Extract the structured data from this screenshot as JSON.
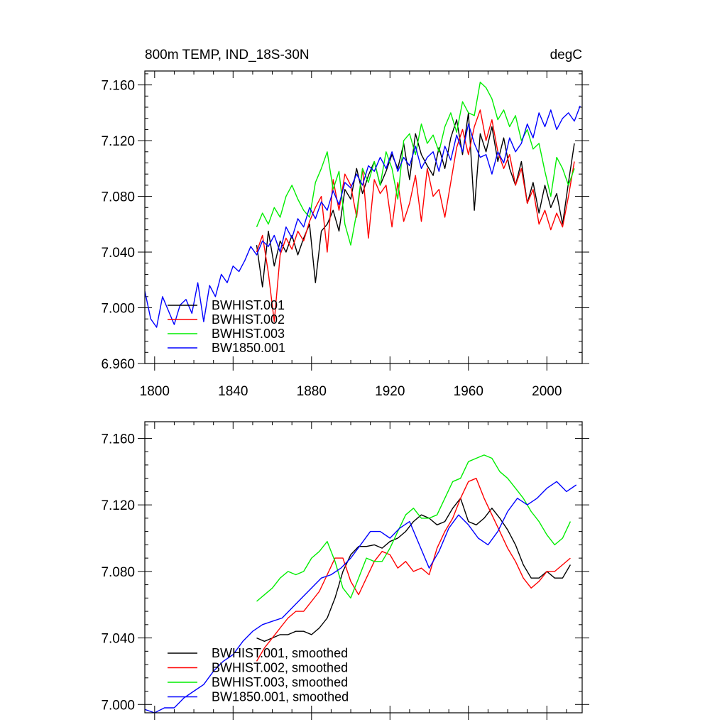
{
  "chart_data": [
    {
      "type": "line",
      "title": "800m TEMP, IND_18S-30N",
      "units": "degC",
      "xlim": [
        1795,
        2018
      ],
      "ylim": [
        6.96,
        7.17
      ],
      "xticks": [
        1800,
        1840,
        1880,
        1920,
        1960,
        2000
      ],
      "yticks": [
        6.96,
        7.0,
        7.04,
        7.08,
        7.12,
        7.16
      ],
      "yticklabels": [
        "6.960",
        "7.000",
        "7.040",
        "7.080",
        "7.120",
        "7.160"
      ],
      "legend_position": "bottom-left",
      "series": [
        {
          "name": "BWHIST.001",
          "color": "#000000",
          "x": [
            1852,
            1855,
            1858,
            1861,
            1864,
            1867,
            1870,
            1873,
            1876,
            1879,
            1882,
            1885,
            1888,
            1891,
            1894,
            1897,
            1900,
            1903,
            1906,
            1909,
            1912,
            1915,
            1918,
            1921,
            1924,
            1927,
            1930,
            1933,
            1936,
            1939,
            1942,
            1945,
            1948,
            1951,
            1954,
            1957,
            1960,
            1963,
            1966,
            1969,
            1972,
            1975,
            1978,
            1981,
            1984,
            1987,
            1990,
            1993,
            1996,
            1999,
            2002,
            2005,
            2008,
            2011,
            2014
          ],
          "values": [
            7.045,
            7.015,
            7.055,
            7.03,
            7.048,
            7.04,
            7.052,
            7.038,
            7.05,
            7.06,
            7.018,
            7.055,
            7.06,
            7.07,
            7.055,
            7.085,
            7.078,
            7.1,
            7.082,
            7.095,
            7.105,
            7.088,
            7.098,
            7.11,
            7.1,
            7.118,
            7.092,
            7.125,
            7.11,
            7.102,
            7.095,
            7.115,
            7.1,
            7.122,
            7.135,
            7.11,
            7.14,
            7.07,
            7.125,
            7.112,
            7.13,
            7.105,
            7.122,
            7.1,
            7.088,
            7.105,
            7.075,
            7.09,
            7.068,
            7.088,
            7.072,
            7.082,
            7.06,
            7.09,
            7.118
          ]
        },
        {
          "name": "BWHIST.002",
          "color": "#ff0000",
          "x": [
            1852,
            1855,
            1858,
            1861,
            1864,
            1867,
            1870,
            1873,
            1876,
            1879,
            1882,
            1885,
            1888,
            1891,
            1894,
            1897,
            1900,
            1903,
            1906,
            1909,
            1912,
            1915,
            1918,
            1921,
            1924,
            1927,
            1930,
            1933,
            1936,
            1939,
            1942,
            1945,
            1948,
            1951,
            1954,
            1957,
            1960,
            1963,
            1966,
            1969,
            1972,
            1975,
            1978,
            1981,
            1984,
            1987,
            1990,
            1993,
            1996,
            1999,
            2002,
            2005,
            2008,
            2011,
            2014
          ],
          "values": [
            7.04,
            7.052,
            7.025,
            6.99,
            7.038,
            7.05,
            7.042,
            7.055,
            7.048,
            7.062,
            7.072,
            7.08,
            7.04,
            7.092,
            7.07,
            7.096,
            7.088,
            7.065,
            7.1,
            7.05,
            7.092,
            7.082,
            7.088,
            7.058,
            7.09,
            7.062,
            7.075,
            7.095,
            7.062,
            7.1,
            7.08,
            7.085,
            7.065,
            7.09,
            7.115,
            7.128,
            7.11,
            7.13,
            7.142,
            7.12,
            7.135,
            7.112,
            7.1,
            7.11,
            7.088,
            7.1,
            7.075,
            7.085,
            7.06,
            7.07,
            7.056,
            7.068,
            7.058,
            7.08,
            7.105
          ]
        },
        {
          "name": "BWHIST.003",
          "color": "#00ee00",
          "x": [
            1852,
            1855,
            1858,
            1861,
            1864,
            1867,
            1870,
            1873,
            1876,
            1879,
            1882,
            1885,
            1888,
            1891,
            1894,
            1897,
            1900,
            1903,
            1906,
            1909,
            1912,
            1915,
            1918,
            1921,
            1924,
            1927,
            1930,
            1933,
            1936,
            1939,
            1942,
            1945,
            1948,
            1951,
            1954,
            1957,
            1960,
            1963,
            1966,
            1969,
            1972,
            1975,
            1978,
            1981,
            1984,
            1987,
            1990,
            1993,
            1996,
            1999,
            2002,
            2005,
            2008,
            2011,
            2014
          ],
          "values": [
            7.058,
            7.068,
            7.06,
            7.072,
            7.065,
            7.08,
            7.088,
            7.078,
            7.07,
            7.065,
            7.09,
            7.1,
            7.112,
            7.085,
            7.098,
            7.06,
            7.045,
            7.068,
            7.1,
            7.09,
            7.105,
            7.088,
            7.112,
            7.1,
            7.078,
            7.12,
            7.125,
            7.11,
            7.132,
            7.118,
            7.124,
            7.112,
            7.13,
            7.14,
            7.126,
            7.148,
            7.14,
            7.138,
            7.162,
            7.158,
            7.15,
            7.135,
            7.142,
            7.13,
            7.138,
            7.12,
            7.128,
            7.114,
            7.118,
            7.098,
            7.08,
            7.108,
            7.1,
            7.088,
            7.1
          ]
        },
        {
          "name": "BW1850.001",
          "color": "#0000ff",
          "x": [
            1795,
            1798,
            1801,
            1804,
            1807,
            1810,
            1813,
            1816,
            1819,
            1822,
            1825,
            1828,
            1831,
            1834,
            1837,
            1840,
            1843,
            1846,
            1849,
            1852,
            1855,
            1858,
            1861,
            1864,
            1867,
            1870,
            1873,
            1876,
            1879,
            1882,
            1885,
            1888,
            1891,
            1894,
            1897,
            1900,
            1903,
            1906,
            1909,
            1912,
            1915,
            1918,
            1921,
            1924,
            1927,
            1930,
            1933,
            1936,
            1939,
            1942,
            1945,
            1948,
            1951,
            1954,
            1957,
            1960,
            1963,
            1966,
            1969,
            1972,
            1975,
            1978,
            1981,
            1984,
            1987,
            1990,
            1993,
            1996,
            1999,
            2002,
            2005,
            2008,
            2011,
            2014,
            2017
          ],
          "values": [
            7.012,
            6.992,
            6.986,
            7.008,
            6.998,
            6.988,
            7.002,
            7.006,
            6.996,
            7.018,
            6.99,
            7.016,
            7.008,
            7.024,
            7.018,
            7.03,
            7.026,
            7.034,
            7.044,
            7.038,
            7.048,
            7.044,
            7.052,
            7.04,
            7.058,
            7.05,
            7.064,
            7.058,
            7.072,
            7.064,
            7.076,
            7.07,
            7.084,
            7.074,
            7.09,
            7.086,
            7.096,
            7.088,
            7.102,
            7.098,
            7.108,
            7.1,
            7.112,
            7.098,
            7.108,
            7.102,
            7.116,
            7.1,
            7.108,
            7.112,
            7.098,
            7.116,
            7.106,
            7.124,
            7.112,
            7.132,
            7.118,
            7.108,
            7.11,
            7.096,
            7.112,
            7.104,
            7.122,
            7.112,
            7.118,
            7.132,
            7.122,
            7.14,
            7.13,
            7.142,
            7.128,
            7.136,
            7.14,
            7.134,
            7.145
          ]
        }
      ]
    },
    {
      "type": "line",
      "xlim": [
        1795,
        2018
      ],
      "ylim": [
        6.995,
        7.17
      ],
      "xticks": [
        1800,
        1840,
        1880,
        1920,
        1960,
        2000
      ],
      "yticks": [
        7.0,
        7.04,
        7.08,
        7.12,
        7.16
      ],
      "yticklabels": [
        "7.000",
        "7.040",
        "7.080",
        "7.120",
        "7.160"
      ],
      "legend_position": "bottom-left",
      "series": [
        {
          "name": "BWHIST.001, smoothed",
          "color": "#000000",
          "x": [
            1852,
            1856,
            1860,
            1864,
            1868,
            1872,
            1876,
            1880,
            1884,
            1888,
            1892,
            1896,
            1900,
            1904,
            1908,
            1912,
            1916,
            1920,
            1924,
            1928,
            1932,
            1936,
            1940,
            1944,
            1948,
            1952,
            1956,
            1960,
            1964,
            1968,
            1972,
            1976,
            1980,
            1984,
            1988,
            1992,
            1996,
            2000,
            2004,
            2008,
            2012
          ],
          "values": [
            7.04,
            7.038,
            7.04,
            7.042,
            7.042,
            7.044,
            7.044,
            7.042,
            7.046,
            7.052,
            7.064,
            7.08,
            7.09,
            7.095,
            7.095,
            7.096,
            7.094,
            7.098,
            7.1,
            7.104,
            7.11,
            7.114,
            7.112,
            7.108,
            7.11,
            7.118,
            7.124,
            7.11,
            7.108,
            7.112,
            7.118,
            7.112,
            7.105,
            7.096,
            7.084,
            7.076,
            7.076,
            7.08,
            7.076,
            7.076,
            7.084
          ]
        },
        {
          "name": "BWHIST.002, smoothed",
          "color": "#ff0000",
          "x": [
            1852,
            1856,
            1860,
            1864,
            1868,
            1872,
            1876,
            1880,
            1884,
            1888,
            1892,
            1896,
            1900,
            1904,
            1908,
            1912,
            1916,
            1920,
            1924,
            1928,
            1932,
            1936,
            1940,
            1944,
            1948,
            1952,
            1956,
            1960,
            1964,
            1968,
            1972,
            1976,
            1980,
            1984,
            1988,
            1992,
            1996,
            2000,
            2004,
            2008,
            2012
          ],
          "values": [
            7.026,
            7.034,
            7.04,
            7.046,
            7.052,
            7.056,
            7.056,
            7.062,
            7.068,
            7.078,
            7.088,
            7.088,
            7.074,
            7.066,
            7.076,
            7.086,
            7.092,
            7.09,
            7.082,
            7.086,
            7.08,
            7.082,
            7.078,
            7.094,
            7.104,
            7.112,
            7.124,
            7.134,
            7.136,
            7.124,
            7.114,
            7.104,
            7.094,
            7.086,
            7.076,
            7.07,
            7.074,
            7.08,
            7.08,
            7.084,
            7.088
          ]
        },
        {
          "name": "BWHIST.003, smoothed",
          "color": "#00ee00",
          "x": [
            1852,
            1856,
            1860,
            1864,
            1868,
            1872,
            1876,
            1880,
            1884,
            1888,
            1892,
            1896,
            1900,
            1904,
            1908,
            1912,
            1916,
            1920,
            1924,
            1928,
            1932,
            1936,
            1940,
            1944,
            1948,
            1952,
            1956,
            1960,
            1964,
            1968,
            1972,
            1976,
            1980,
            1984,
            1988,
            1992,
            1996,
            2000,
            2004,
            2008,
            2012
          ],
          "values": [
            7.062,
            7.066,
            7.07,
            7.076,
            7.08,
            7.078,
            7.08,
            7.088,
            7.092,
            7.098,
            7.086,
            7.07,
            7.064,
            7.076,
            7.088,
            7.086,
            7.086,
            7.094,
            7.104,
            7.114,
            7.118,
            7.112,
            7.112,
            7.114,
            7.124,
            7.134,
            7.136,
            7.146,
            7.148,
            7.15,
            7.148,
            7.14,
            7.136,
            7.13,
            7.124,
            7.116,
            7.11,
            7.102,
            7.096,
            7.1,
            7.11
          ]
        },
        {
          "name": "BW1850.001, smoothed",
          "color": "#0000ff",
          "x": [
            1795,
            1800,
            1805,
            1810,
            1815,
            1820,
            1825,
            1830,
            1835,
            1840,
            1845,
            1850,
            1855,
            1860,
            1865,
            1870,
            1875,
            1880,
            1885,
            1890,
            1895,
            1900,
            1905,
            1910,
            1915,
            1920,
            1925,
            1930,
            1935,
            1940,
            1945,
            1950,
            1955,
            1960,
            1965,
            1970,
            1975,
            1980,
            1985,
            1990,
            1995,
            2000,
            2005,
            2010,
            2015
          ],
          "values": [
            6.997,
            6.995,
            6.998,
            6.998,
            7.004,
            7.008,
            7.012,
            7.02,
            7.026,
            7.03,
            7.038,
            7.044,
            7.048,
            7.05,
            7.052,
            7.058,
            7.064,
            7.07,
            7.076,
            7.078,
            7.082,
            7.088,
            7.096,
            7.104,
            7.104,
            7.1,
            7.106,
            7.11,
            7.096,
            7.082,
            7.092,
            7.106,
            7.114,
            7.108,
            7.1,
            7.096,
            7.104,
            7.116,
            7.124,
            7.12,
            7.124,
            7.13,
            7.134,
            7.128,
            7.132
          ]
        }
      ]
    }
  ]
}
